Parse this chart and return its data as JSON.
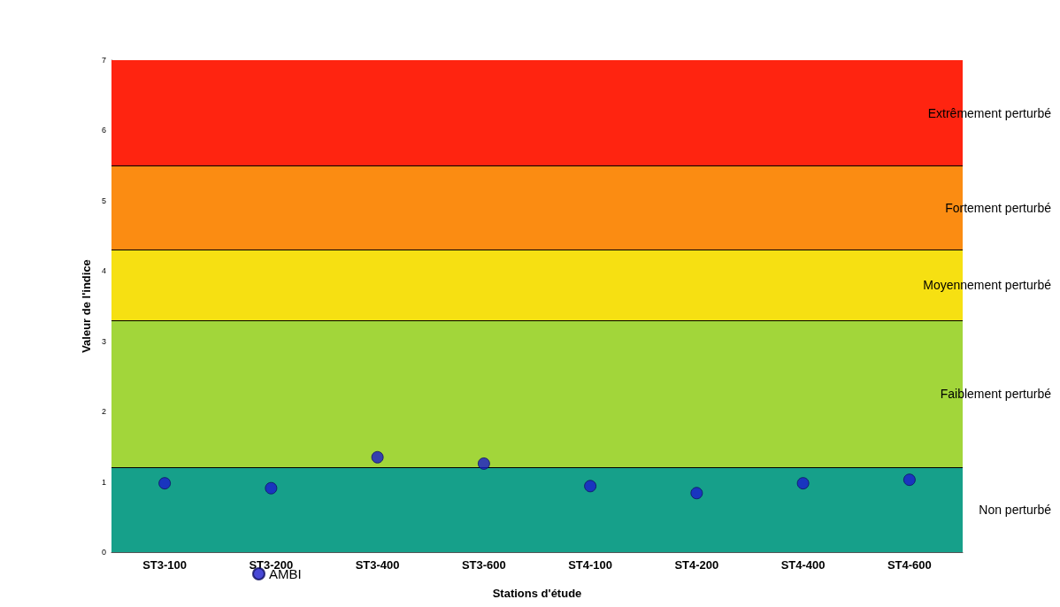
{
  "chart_data": {
    "type": "scatter",
    "xlabel": "Stations d'étude",
    "ylabel": "Valeur de l'indice",
    "categories": [
      "ST3-100",
      "ST3-200",
      "ST3-400",
      "ST3-600",
      "ST4-100",
      "ST4-200",
      "ST4-400",
      "ST4-600"
    ],
    "series": [
      {
        "name": "AMBI",
        "color": "#1a1acc",
        "values": [
          0.98,
          0.91,
          1.35,
          1.26,
          0.94,
          0.84,
          0.98,
          1.03
        ]
      }
    ],
    "ylim": [
      0,
      7
    ],
    "yticks": [
      0,
      1,
      2,
      3,
      4,
      5,
      6,
      7
    ],
    "grid": false,
    "legend": "bottom left",
    "marker": "circle",
    "bands": [
      {
        "axis": "y",
        "from": 0,
        "to": 1.2,
        "label": "Non perturbé",
        "color": "#16a08a"
      },
      {
        "axis": "y",
        "from": 1.2,
        "to": 3.3,
        "label": "Faiblement perturbé",
        "color": "#a2d63a"
      },
      {
        "axis": "y",
        "from": 3.3,
        "to": 4.3,
        "label": "Moyennement perturbé",
        "color": "#f6e012"
      },
      {
        "axis": "y",
        "from": 4.3,
        "to": 5.5,
        "label": "Fortement perturbé",
        "color": "#fb8c12"
      },
      {
        "axis": "y",
        "from": 5.5,
        "to": 7,
        "label": "Extrêmement perturbé",
        "color": "#ff2410"
      }
    ],
    "ref_lines": [
      {
        "axis": "y",
        "value": 1.2,
        "color": "#000000"
      },
      {
        "axis": "y",
        "value": 3.3,
        "color": "#000000"
      },
      {
        "axis": "y",
        "value": 4.3,
        "color": "#000000"
      },
      {
        "axis": "y",
        "value": 5.5,
        "color": "#000000"
      }
    ]
  }
}
